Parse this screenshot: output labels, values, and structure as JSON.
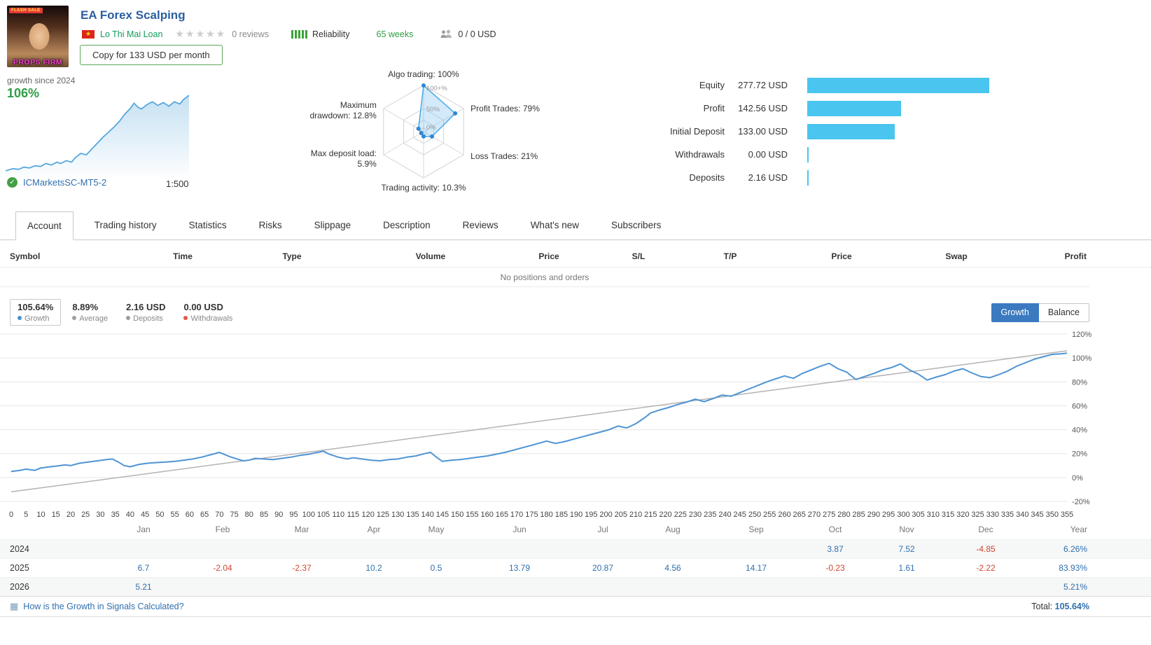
{
  "header": {
    "title": "EA Forex Scalping",
    "author": "Lo Thi Mai Loan",
    "rating_reviews": "0 reviews",
    "reliability_label": "Reliability",
    "weeks": "65 weeks",
    "subscribers": "0 / 0 USD",
    "copy_button": "Copy for 133 USD per month",
    "avatar_sale": "FLASH SALE",
    "avatar_brand": "PROPS FIRM"
  },
  "growth_panel": {
    "caption": "growth since 2024",
    "value": "106%",
    "broker": "ICMarketsSC-MT5-2",
    "leverage": "1:500"
  },
  "radar": {
    "axes": [
      {
        "label": [
          "Algo trading: 100%"
        ],
        "value": 100
      },
      {
        "label": [
          "Profit Trades: 79%"
        ],
        "value": 79
      },
      {
        "label": [
          "Loss Trades: 21%"
        ],
        "value": 21
      },
      {
        "label": [
          "Trading activity: 10.3%"
        ],
        "value": 10.3
      },
      {
        "label": [
          "Max deposit load:",
          "5.9%"
        ],
        "value": 5.9
      },
      {
        "label": [
          "Maximum",
          "drawdown: 12.8%"
        ],
        "value": 12.8
      }
    ],
    "ring_labels": [
      "100+%",
      "50%",
      "0%"
    ]
  },
  "account_stats": {
    "max": 277.72,
    "bar_color": "#49c5ef",
    "rows": [
      {
        "label": "Equity",
        "value": "277.72 USD",
        "amount": 277.72
      },
      {
        "label": "Profit",
        "value": "142.56 USD",
        "amount": 142.56
      },
      {
        "label": "Initial Deposit",
        "value": "133.00 USD",
        "amount": 133.0
      },
      {
        "label": "Withdrawals",
        "value": "0.00 USD",
        "amount": 0
      },
      {
        "label": "Deposits",
        "value": "2.16 USD",
        "amount": 2.16
      }
    ]
  },
  "tabs": [
    "Account",
    "Trading history",
    "Statistics",
    "Risks",
    "Slippage",
    "Description",
    "Reviews",
    "What's new",
    "Subscribers"
  ],
  "active_tab": "Account",
  "positions": {
    "columns": [
      "Symbol",
      "Time",
      "Type",
      "Volume",
      "Price",
      "S/L",
      "T/P",
      "Price",
      "Swap",
      "Profit"
    ],
    "empty_text": "No positions and orders"
  },
  "summary": {
    "items": [
      {
        "value": "105.64%",
        "label": "Growth",
        "dot": "#4a90d2",
        "boxed": true
      },
      {
        "value": "8.89%",
        "label": "Average",
        "dot": "#9e9e9e",
        "boxed": false
      },
      {
        "value": "2.16 USD",
        "label": "Deposits",
        "dot": "#9e9e9e",
        "boxed": false
      },
      {
        "value": "0.00 USD",
        "label": "Withdrawals",
        "dot": "#e2574c",
        "boxed": false
      }
    ],
    "toggle": [
      "Growth",
      "Balance"
    ],
    "active_toggle": "Growth"
  },
  "chart_data": {
    "type": "line",
    "title": "Signal growth by trade number",
    "x_range": {
      "start": 0,
      "end": 355,
      "tick_step": 5
    },
    "y_ticks": [
      120,
      100,
      80,
      60,
      40,
      20,
      0,
      -20
    ],
    "y_unit": "%",
    "legend_position": "none",
    "grid": true,
    "series": [
      {
        "name": "Growth",
        "color": "#4f94d4",
        "points": [
          [
            0,
            5
          ],
          [
            3,
            6
          ],
          [
            5,
            7
          ],
          [
            8,
            6
          ],
          [
            10,
            8
          ],
          [
            13,
            9
          ],
          [
            15,
            9.5
          ],
          [
            18,
            10.5
          ],
          [
            20,
            10
          ],
          [
            23,
            12
          ],
          [
            26,
            13
          ],
          [
            29,
            14
          ],
          [
            32,
            15
          ],
          [
            34,
            15.5
          ],
          [
            36,
            13
          ],
          [
            38,
            10
          ],
          [
            40,
            9
          ],
          [
            43,
            11
          ],
          [
            46,
            12
          ],
          [
            49,
            12.5
          ],
          [
            52,
            13
          ],
          [
            55,
            13.5
          ],
          [
            58,
            14.5
          ],
          [
            61,
            15.5
          ],
          [
            64,
            17
          ],
          [
            67,
            19
          ],
          [
            70,
            21
          ],
          [
            72,
            19
          ],
          [
            74,
            17
          ],
          [
            76,
            15.5
          ],
          [
            78,
            14
          ],
          [
            80,
            14.5
          ],
          [
            82,
            16
          ],
          [
            85,
            15.5
          ],
          [
            88,
            15
          ],
          [
            91,
            16
          ],
          [
            94,
            17
          ],
          [
            97,
            18.5
          ],
          [
            100,
            19.5
          ],
          [
            103,
            21
          ],
          [
            105,
            22
          ],
          [
            107,
            19.5
          ],
          [
            110,
            17
          ],
          [
            113,
            15.5
          ],
          [
            115,
            16.5
          ],
          [
            118,
            15.5
          ],
          [
            121,
            14.5
          ],
          [
            124,
            14
          ],
          [
            127,
            15
          ],
          [
            130,
            15.5
          ],
          [
            133,
            17
          ],
          [
            136,
            18
          ],
          [
            139,
            20
          ],
          [
            141,
            21
          ],
          [
            143,
            17
          ],
          [
            145,
            13.5
          ],
          [
            148,
            14.5
          ],
          [
            151,
            15
          ],
          [
            154,
            16
          ],
          [
            157,
            17
          ],
          [
            160,
            18
          ],
          [
            163,
            19.5
          ],
          [
            166,
            21
          ],
          [
            169,
            23
          ],
          [
            172,
            25
          ],
          [
            175,
            27
          ],
          [
            178,
            29
          ],
          [
            180,
            30.5
          ],
          [
            183,
            28.5
          ],
          [
            186,
            30
          ],
          [
            189,
            32
          ],
          [
            192,
            34
          ],
          [
            195,
            36
          ],
          [
            198,
            38
          ],
          [
            201,
            40
          ],
          [
            204,
            43
          ],
          [
            207,
            41.5
          ],
          [
            210,
            45
          ],
          [
            213,
            50
          ],
          [
            215,
            54
          ],
          [
            218,
            56.5
          ],
          [
            221,
            58.5
          ],
          [
            224,
            61
          ],
          [
            227,
            63
          ],
          [
            230,
            65.5
          ],
          [
            233,
            63.5
          ],
          [
            236,
            66
          ],
          [
            239,
            69
          ],
          [
            242,
            68
          ],
          [
            245,
            71
          ],
          [
            248,
            74
          ],
          [
            251,
            77
          ],
          [
            254,
            80
          ],
          [
            257,
            82.5
          ],
          [
            260,
            85
          ],
          [
            263,
            83
          ],
          [
            266,
            87
          ],
          [
            269,
            90
          ],
          [
            272,
            93
          ],
          [
            275,
            95.5
          ],
          [
            278,
            91
          ],
          [
            281,
            88
          ],
          [
            284,
            82
          ],
          [
            287,
            84.5
          ],
          [
            290,
            87
          ],
          [
            293,
            90
          ],
          [
            296,
            92
          ],
          [
            299,
            95
          ],
          [
            302,
            90
          ],
          [
            305,
            86.5
          ],
          [
            308,
            81.5
          ],
          [
            311,
            84
          ],
          [
            314,
            86
          ],
          [
            317,
            89
          ],
          [
            320,
            91
          ],
          [
            323,
            87.5
          ],
          [
            326,
            84.5
          ],
          [
            329,
            83.5
          ],
          [
            332,
            86
          ],
          [
            335,
            89
          ],
          [
            338,
            93
          ],
          [
            341,
            96
          ],
          [
            344,
            99
          ],
          [
            347,
            101
          ],
          [
            350,
            103
          ],
          [
            353,
            103.5
          ],
          [
            355,
            104
          ]
        ]
      },
      {
        "name": "Trend",
        "color": "#b3b3b3",
        "points": [
          [
            0,
            -12
          ],
          [
            355,
            106
          ]
        ]
      }
    ],
    "sparkline": {
      "color": "#58a7dc",
      "points": [
        [
          0,
          2
        ],
        [
          0.04,
          5
        ],
        [
          0.07,
          4
        ],
        [
          0.1,
          7
        ],
        [
          0.13,
          6
        ],
        [
          0.16,
          9
        ],
        [
          0.19,
          8
        ],
        [
          0.22,
          12
        ],
        [
          0.25,
          10
        ],
        [
          0.28,
          14
        ],
        [
          0.3,
          12
        ],
        [
          0.33,
          16
        ],
        [
          0.36,
          14
        ],
        [
          0.38,
          20
        ],
        [
          0.41,
          26
        ],
        [
          0.44,
          24
        ],
        [
          0.47,
          32
        ],
        [
          0.5,
          40
        ],
        [
          0.53,
          48
        ],
        [
          0.56,
          55
        ],
        [
          0.59,
          62
        ],
        [
          0.62,
          70
        ],
        [
          0.65,
          80
        ],
        [
          0.68,
          88
        ],
        [
          0.7,
          95
        ],
        [
          0.72,
          90
        ],
        [
          0.74,
          87
        ],
        [
          0.77,
          93
        ],
        [
          0.8,
          97
        ],
        [
          0.83,
          92
        ],
        [
          0.86,
          96
        ],
        [
          0.89,
          91
        ],
        [
          0.92,
          97
        ],
        [
          0.95,
          94
        ],
        [
          0.97,
          100
        ],
        [
          1,
          106
        ]
      ]
    }
  },
  "monthly_table": {
    "months": [
      "Jan",
      "Feb",
      "Mar",
      "Apr",
      "May",
      "Jun",
      "Jul",
      "Aug",
      "Sep",
      "Oct",
      "Nov",
      "Dec",
      "Year"
    ],
    "rows": [
      {
        "year": "2024",
        "values": [
          "",
          "",
          "",
          "",
          "",
          "",
          "",
          "",
          "",
          "3.87",
          "7.52",
          "-4.85",
          "6.26%"
        ]
      },
      {
        "year": "2025",
        "values": [
          "6.7",
          "-2.04",
          "-2.37",
          "10.2",
          "0.5",
          "13.79",
          "20.87",
          "4.56",
          "14.17",
          "-0.23",
          "1.61",
          "-2.22",
          "83.93%"
        ]
      },
      {
        "year": "2026",
        "values": [
          "5.21",
          "",
          "",
          "",
          "",
          "",
          "",
          "",
          "",
          "",
          "",
          "",
          "5.21%"
        ]
      }
    ]
  },
  "footer": {
    "link": "How is the Growth in Signals Calculated?",
    "total_label": "Total:",
    "total_value": "105.64%"
  }
}
